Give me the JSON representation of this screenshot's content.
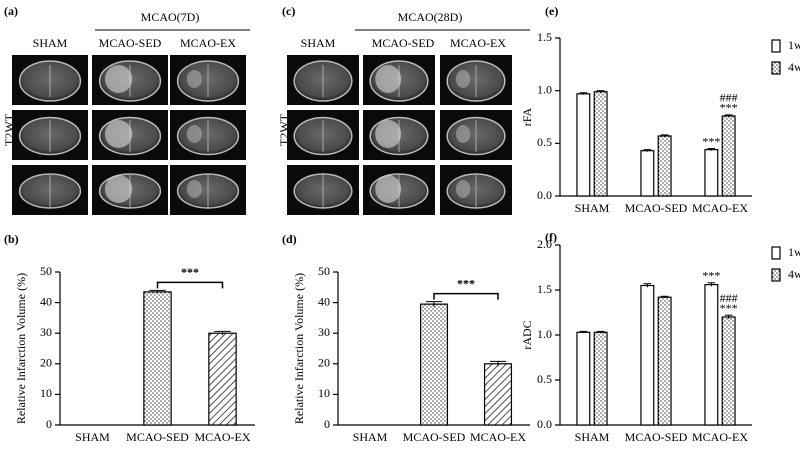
{
  "mri_panels": [
    {
      "panel": "(a)",
      "group": "MCAO(7D)",
      "columns": [
        "SHAM",
        "MCAO-SED",
        "MCAO-EX"
      ],
      "row_label": "T2WT"
    },
    {
      "panel": "(c)",
      "group": "MCAO(28D)",
      "columns": [
        "SHAM",
        "MCAO-SED",
        "MCAO-EX"
      ],
      "row_label": "T2WT"
    }
  ],
  "chart_data": [
    {
      "type": "bar",
      "panel": "(b)",
      "ylabel": "Relative Infarction Volume (%)",
      "categories": [
        "SHAM",
        "MCAO-SED",
        "MCAO-EX"
      ],
      "values": [
        0,
        43.5,
        30
      ],
      "errors": [
        0,
        0.5,
        0.6
      ],
      "patterns": [
        "none",
        "dots",
        "hatch"
      ],
      "annotation": "***",
      "ylim": [
        0,
        50
      ],
      "yticks": [
        0,
        10,
        20,
        30,
        40,
        50
      ]
    },
    {
      "type": "bar",
      "panel": "(d)",
      "ylabel": "Relative Infarction Volume (%)",
      "categories": [
        "SHAM",
        "MCAO-SED",
        "MCAO-EX"
      ],
      "values": [
        0,
        39.5,
        20
      ],
      "errors": [
        0,
        0.8,
        0.8
      ],
      "patterns": [
        "none",
        "dots",
        "hatch"
      ],
      "annotation": "***",
      "ylim": [
        0,
        50
      ],
      "yticks": [
        0,
        10,
        20,
        30,
        40,
        50
      ]
    },
    {
      "type": "grouped_bar",
      "panel": "(e)",
      "ylabel": "rFA",
      "categories": [
        "SHAM",
        "MCAO-SED",
        "MCAO-EX"
      ],
      "series": [
        {
          "name": "1w",
          "pattern": "none",
          "values": [
            0.97,
            0.43,
            0.44
          ],
          "errors": [
            0.01,
            0.01,
            0.01
          ],
          "annotations": [
            null,
            null,
            [
              "***"
            ]
          ]
        },
        {
          "name": "4w",
          "pattern": "dots",
          "values": [
            0.99,
            0.57,
            0.76
          ],
          "errors": [
            0.01,
            0.01,
            0.01
          ],
          "annotations": [
            null,
            null,
            [
              "###",
              "***"
            ]
          ]
        }
      ],
      "legend": "upper right",
      "ylim": [
        0,
        1.5
      ],
      "yticks": [
        {
          "value": 0,
          "label": "0.0"
        },
        0.5,
        {
          "value": 1,
          "label": "1.0"
        },
        1.5
      ]
    },
    {
      "type": "grouped_bar",
      "panel": "(f)",
      "ylabel": "rADC",
      "categories": [
        "SHAM",
        "MCAO-SED",
        "MCAO-EX"
      ],
      "series": [
        {
          "name": "1w",
          "pattern": "none",
          "values": [
            1.03,
            1.55,
            1.56
          ],
          "errors": [
            0.01,
            0.02,
            0.02
          ],
          "annotations": [
            null,
            null,
            [
              "***"
            ]
          ]
        },
        {
          "name": "4w",
          "pattern": "dots",
          "values": [
            1.03,
            1.42,
            1.2
          ],
          "errors": [
            0.01,
            0.01,
            0.02
          ],
          "annotations": [
            null,
            null,
            [
              "###",
              "***"
            ]
          ]
        }
      ],
      "legend": "upper right",
      "ylim": [
        0,
        2
      ],
      "yticks": [
        {
          "value": 0,
          "label": "0.0"
        },
        0.5,
        {
          "value": 1,
          "label": "1.0"
        },
        1.5,
        {
          "value": 2,
          "label": "2.0"
        }
      ]
    }
  ]
}
